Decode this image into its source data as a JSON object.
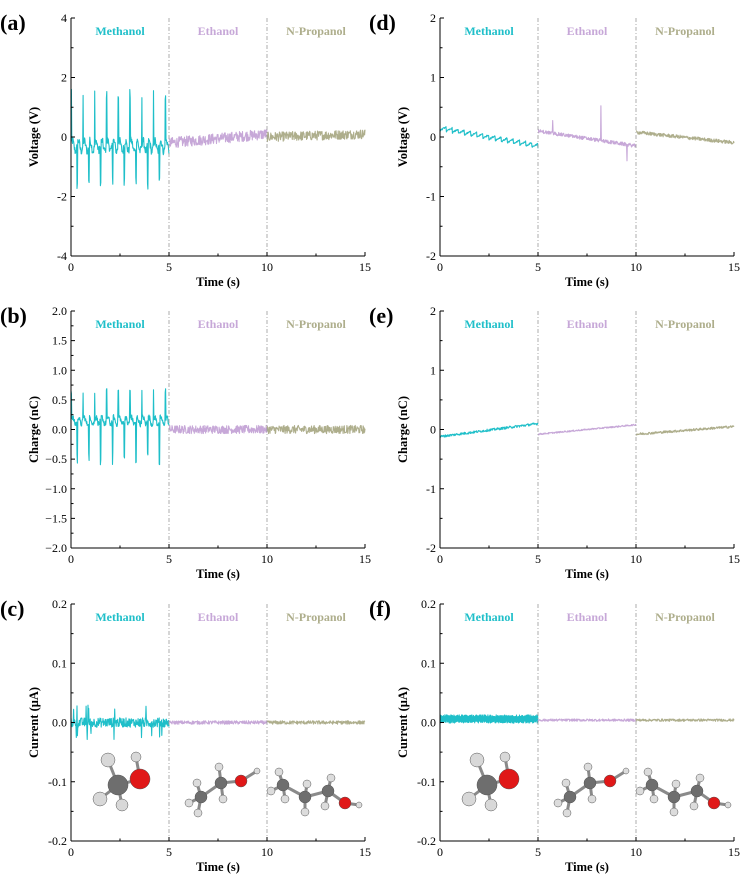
{
  "colors": {
    "Methanol": "#1fbfc9",
    "Ethanol": "#c7a8d8",
    "N-Propanol": "#aeae8c"
  },
  "chart_data": [
    {
      "id": "a",
      "panel_label": "(a)",
      "type": "line",
      "xlabel": "Time (s)",
      "ylabel": "Voltage (V)",
      "xlim": [
        0,
        15
      ],
      "ylim": [
        -4,
        4
      ],
      "xticks": [
        0,
        5,
        10,
        15
      ],
      "yticks": [
        -4,
        -2,
        0,
        2,
        4
      ],
      "ytick_labels": [
        "-4",
        "-2",
        "0",
        "2",
        "4"
      ],
      "dividers": [
        5,
        10
      ],
      "segments": [
        {
          "name": "Methanol",
          "x0": 0,
          "x1": 5,
          "kind": "spikes",
          "baseline": -0.3,
          "period": 0.6,
          "amp": 1.9,
          "negamp": 1.5,
          "noise": 0.35
        },
        {
          "name": "Ethanol",
          "x0": 5,
          "x1": 10,
          "kind": "noise",
          "baseline": -0.2,
          "slope": 0.06,
          "noise": 0.18
        },
        {
          "name": "N-Propanol",
          "x0": 10,
          "x1": 15,
          "kind": "noise",
          "baseline": 0.0,
          "slope": 0.02,
          "noise": 0.16
        }
      ]
    },
    {
      "id": "b",
      "panel_label": "(b)",
      "type": "line",
      "xlabel": "Time (s)",
      "ylabel": "Charge (nC)",
      "xlim": [
        0,
        15
      ],
      "ylim": [
        -2,
        2
      ],
      "xticks": [
        0,
        5,
        10,
        15
      ],
      "yticks": [
        -2,
        -1.5,
        -1,
        -0.5,
        0,
        0.5,
        1,
        1.5,
        2
      ],
      "ytick_labels": [
        "−2.0",
        "−1.5",
        "−1.0",
        "−0.5",
        "0.0",
        "0.5",
        "1.0",
        "1.5",
        "2.0"
      ],
      "dividers": [
        5,
        10
      ],
      "segments": [
        {
          "name": "Methanol",
          "x0": 0,
          "x1": 5,
          "kind": "spikes",
          "baseline": 0.15,
          "period": 0.6,
          "amp": 0.55,
          "negamp": 0.75,
          "noise": 0.12
        },
        {
          "name": "Ethanol",
          "x0": 5,
          "x1": 10,
          "kind": "noise",
          "baseline": 0.0,
          "slope": 0.0,
          "noise": 0.07
        },
        {
          "name": "N-Propanol",
          "x0": 10,
          "x1": 15,
          "kind": "noise",
          "baseline": 0.0,
          "slope": 0.0,
          "noise": 0.07
        }
      ]
    },
    {
      "id": "c",
      "panel_label": "(c)",
      "type": "line",
      "xlabel": "Time (s)",
      "ylabel": "Current (μA)",
      "xlim": [
        0,
        15
      ],
      "ylim": [
        -0.2,
        0.2
      ],
      "xticks": [
        0,
        5,
        10,
        15
      ],
      "yticks": [
        -0.2,
        -0.1,
        0,
        0.1,
        0.2
      ],
      "ytick_labels": [
        "-0.2",
        "-0.1",
        "0.0",
        "0.1",
        "0.2"
      ],
      "dividers": [
        5,
        10
      ],
      "molecules": true,
      "segments": [
        {
          "name": "Methanol",
          "x0": 0,
          "x1": 5,
          "kind": "sparse",
          "baseline": 0.0,
          "noise": 0.008,
          "spikes": 0.03
        },
        {
          "name": "Ethanol",
          "x0": 5,
          "x1": 10,
          "kind": "noise",
          "baseline": 0.0,
          "slope": 0.0,
          "noise": 0.003
        },
        {
          "name": "N-Propanol",
          "x0": 10,
          "x1": 15,
          "kind": "noise",
          "baseline": 0.0,
          "slope": 0.0,
          "noise": 0.003
        }
      ]
    },
    {
      "id": "d",
      "panel_label": "(d)",
      "type": "line",
      "xlabel": "Time (s)",
      "ylabel": "Voltage (V)",
      "xlim": [
        0,
        15
      ],
      "ylim": [
        -2,
        2
      ],
      "xticks": [
        0,
        5,
        10,
        15
      ],
      "yticks": [
        -2,
        -1,
        0,
        1,
        2
      ],
      "ytick_labels": [
        "-2",
        "-1",
        "0",
        "1",
        "2"
      ],
      "dividers": [
        5,
        10
      ],
      "segments": [
        {
          "name": "Methanol",
          "x0": 0,
          "x1": 5,
          "kind": "saw",
          "start": 0.15,
          "end": -0.15,
          "noise": 0.04
        },
        {
          "name": "Ethanol",
          "x0": 5,
          "x1": 10,
          "kind": "bursts",
          "baseline": 0.1,
          "slope": -0.05,
          "noise": 0.03,
          "spikes": 0.55
        },
        {
          "name": "N-Propanol",
          "x0": 10,
          "x1": 15,
          "kind": "noise",
          "baseline": 0.08,
          "slope": -0.035,
          "noise": 0.03
        }
      ]
    },
    {
      "id": "e",
      "panel_label": "(e)",
      "type": "line",
      "xlabel": "Time (s)",
      "ylabel": "Charge (nC)",
      "xlim": [
        0,
        15
      ],
      "ylim": [
        -2,
        2
      ],
      "xticks": [
        0,
        5,
        10,
        15
      ],
      "yticks": [
        -2,
        -1,
        0,
        1,
        2
      ],
      "ytick_labels": [
        "-2",
        "-1",
        "0",
        "1",
        "2"
      ],
      "dividers": [
        5,
        10
      ],
      "segments": [
        {
          "name": "Methanol",
          "x0": 0,
          "x1": 5,
          "kind": "ramp",
          "start": -0.12,
          "end": 0.1,
          "noise": 0.02
        },
        {
          "name": "Ethanol",
          "x0": 5,
          "x1": 10,
          "kind": "ramp",
          "start": -0.08,
          "end": 0.08,
          "noise": 0.012
        },
        {
          "name": "N-Propanol",
          "x0": 10,
          "x1": 15,
          "kind": "ramp",
          "start": -0.08,
          "end": 0.05,
          "noise": 0.02
        }
      ]
    },
    {
      "id": "f",
      "panel_label": "(f)",
      "type": "line",
      "xlabel": "Time (s)",
      "ylabel": "Current (μA)",
      "xlim": [
        0,
        15
      ],
      "ylim": [
        -0.2,
        0.2
      ],
      "xticks": [
        0,
        5,
        10,
        15
      ],
      "yticks": [
        -0.2,
        -0.1,
        0,
        0.1,
        0.2
      ],
      "ytick_labels": [
        "-0.2",
        "-0.1",
        "0.0",
        "0.1",
        "0.2"
      ],
      "dividers": [
        5,
        10
      ],
      "molecules": true,
      "segments": [
        {
          "name": "Methanol",
          "x0": 0,
          "x1": 5,
          "kind": "dense",
          "baseline": 0.006,
          "noise": 0.007
        },
        {
          "name": "Ethanol",
          "x0": 5,
          "x1": 10,
          "kind": "noise",
          "baseline": 0.004,
          "slope": 0.0,
          "noise": 0.002
        },
        {
          "name": "N-Propanol",
          "x0": 10,
          "x1": 15,
          "kind": "noise",
          "baseline": 0.004,
          "slope": 0.0,
          "noise": 0.002
        }
      ]
    }
  ]
}
